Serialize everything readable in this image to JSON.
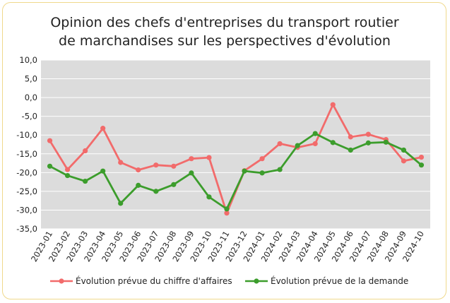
{
  "chart_data": {
    "type": "line",
    "title": [
      "Opinion des chefs d'entreprises du transport routier",
      "de marchandises sur les perspectives d'évolution"
    ],
    "xlabel": "",
    "ylabel": "",
    "ylim": [
      -35,
      10
    ],
    "yticks": [
      10,
      5,
      0,
      -5,
      -10,
      -15,
      -20,
      -25,
      -30,
      -35
    ],
    "ytick_labels": [
      "10,0",
      "5,0",
      "0,0",
      "-5,0",
      "-10,0",
      "-15,0",
      "-20,0",
      "-25,0",
      "-30,0",
      "-35,0"
    ],
    "grid": "horizontal",
    "legend_position": "bottom",
    "categories": [
      "2023-01",
      "2023-02",
      "2023-03",
      "2023-04",
      "2023-05",
      "2023-06",
      "2023-07",
      "2023-08",
      "2023-09",
      "2023-10",
      "2023-11",
      "2023-12",
      "2024-01",
      "2024-02",
      "2024-03",
      "2024-04",
      "2024-05",
      "2024-06",
      "2024-07",
      "2024-08",
      "2024-09",
      "2024-10"
    ],
    "series": [
      {
        "name": "Évolution prévue du chiffre d'affaires",
        "color": "#f26b6b",
        "values": [
          -11.5,
          -19.2,
          -14.2,
          -8.2,
          -17.3,
          -19.3,
          -18.0,
          -18.3,
          -16.3,
          -16.0,
          -30.8,
          -19.5,
          -16.3,
          -12.3,
          -13.3,
          -12.3,
          -1.9,
          -10.5,
          -9.8,
          -11.2,
          -16.9,
          -15.9
        ]
      },
      {
        "name": "Évolution prévue de la demande",
        "color": "#3c9d2c",
        "values": [
          -18.3,
          -20.8,
          -22.3,
          -19.6,
          -28.2,
          -23.4,
          -25.0,
          -23.2,
          -20.1,
          -26.5,
          -29.7,
          -19.6,
          -20.1,
          -19.2,
          -12.8,
          -9.6,
          -12.0,
          -14.0,
          -12.1,
          -11.9,
          -14.0,
          -18.0
        ]
      }
    ]
  }
}
